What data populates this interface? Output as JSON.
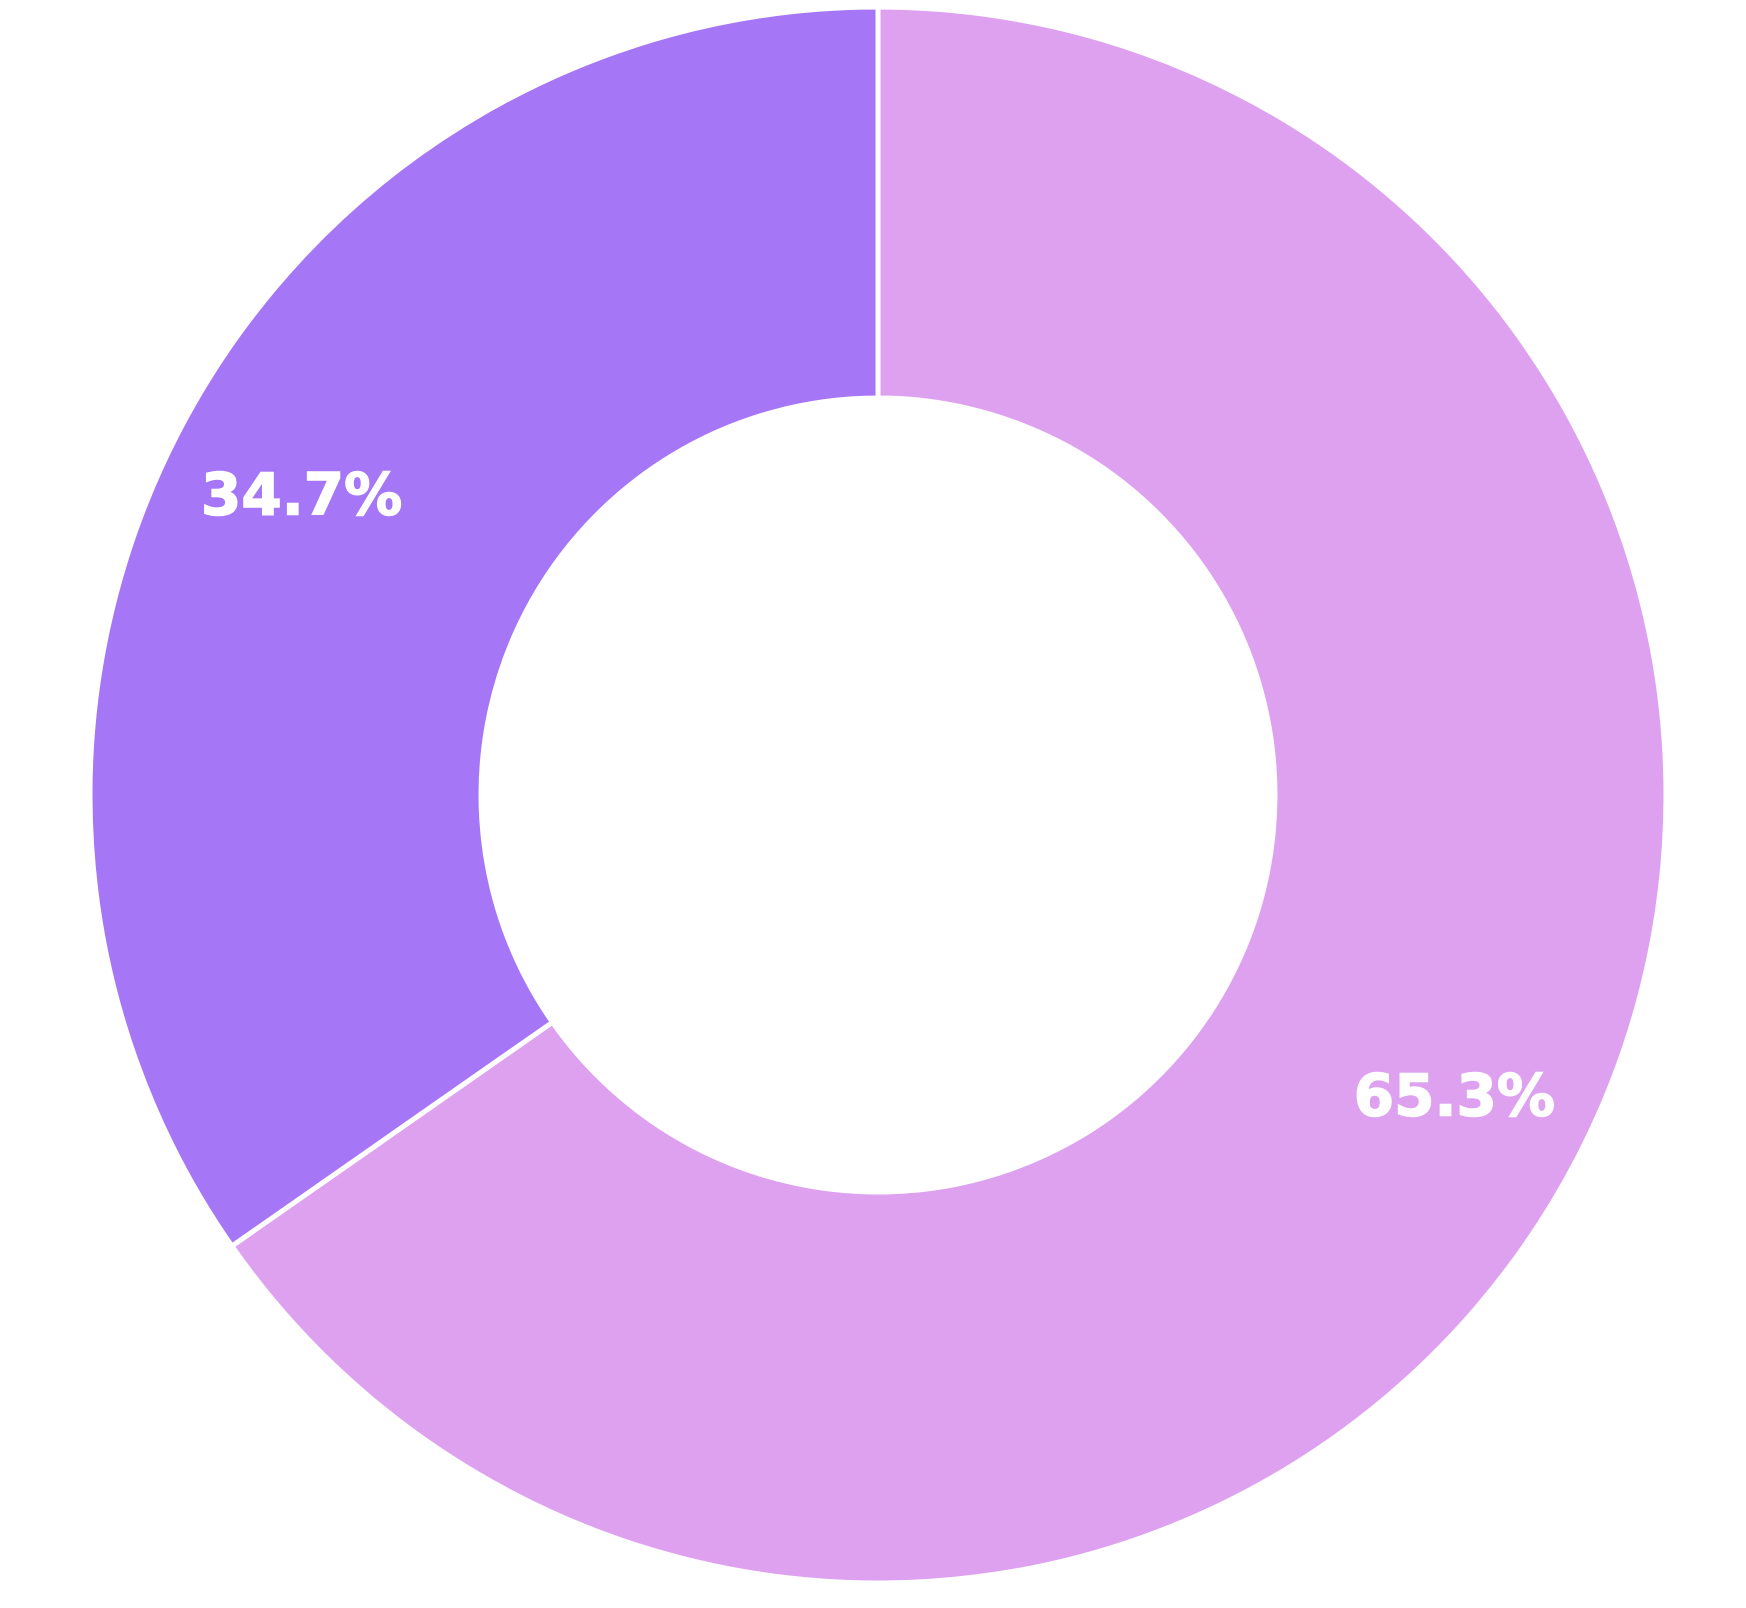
{
  "chart_data": {
    "type": "pie",
    "variant": "donut",
    "start_angle": "top",
    "direction": "clockwise",
    "legend": "none",
    "slices": [
      {
        "value": 65.3,
        "label": "65.3%",
        "color": "#dda1f0"
      },
      {
        "value": 34.7,
        "label": "34.7%",
        "color": "#a576f5"
      }
    ]
  }
}
